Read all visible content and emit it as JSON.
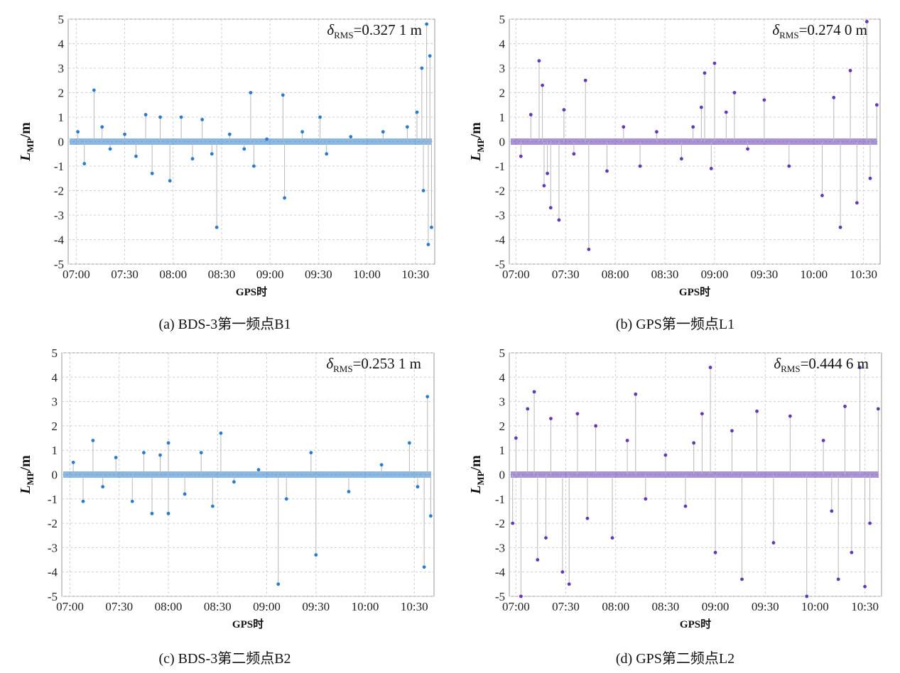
{
  "chart_data": [
    {
      "type": "scatter",
      "panel_label": "(a) BDS-3第一频点B1",
      "annotation": {
        "symbol": "δ",
        "sub": "RMS",
        "value": "=0.327 1 m"
      },
      "xlabel": "GPS时",
      "ylabel": {
        "main": "L",
        "sub": "MP",
        "unit": "/m"
      },
      "x_ticks": [
        "07:00",
        "07:30",
        "08:00",
        "08:30",
        "09:00",
        "09:30",
        "10:00",
        "10:30"
      ],
      "x_range": [
        "06:55",
        "10:42"
      ],
      "y_ticks": [
        5,
        4,
        3,
        2,
        1,
        0,
        -1,
        -2,
        -3,
        -4,
        -5
      ],
      "ylim": [
        -5,
        5
      ],
      "grid": true,
      "color": "#2b7bcc",
      "series": [
        {
          "points": [
            {
              "x": "07:01",
              "y": 0.4
            },
            {
              "x": "07:05",
              "y": -0.9
            },
            {
              "x": "07:11",
              "y": 2.1
            },
            {
              "x": "07:16",
              "y": 0.6
            },
            {
              "x": "07:21",
              "y": -0.3
            },
            {
              "x": "07:30",
              "y": 0.3
            },
            {
              "x": "07:37",
              "y": -0.6
            },
            {
              "x": "07:43",
              "y": 1.1
            },
            {
              "x": "07:47",
              "y": -1.3
            },
            {
              "x": "07:52",
              "y": 1.0
            },
            {
              "x": "07:58",
              "y": -1.6
            },
            {
              "x": "08:05",
              "y": 1.0
            },
            {
              "x": "08:12",
              "y": -0.7
            },
            {
              "x": "08:18",
              "y": 0.9
            },
            {
              "x": "08:24",
              "y": -0.5
            },
            {
              "x": "08:27",
              "y": -3.5
            },
            {
              "x": "08:35",
              "y": 0.3
            },
            {
              "x": "08:44",
              "y": -0.3
            },
            {
              "x": "08:48",
              "y": 2.0
            },
            {
              "x": "08:50",
              "y": -1.0
            },
            {
              "x": "08:58",
              "y": 0.1
            },
            {
              "x": "09:08",
              "y": 1.9
            },
            {
              "x": "09:09",
              "y": -2.3
            },
            {
              "x": "09:20",
              "y": 0.4
            },
            {
              "x": "09:31",
              "y": 1.0
            },
            {
              "x": "09:35",
              "y": -0.5
            },
            {
              "x": "09:50",
              "y": 0.2
            },
            {
              "x": "10:10",
              "y": 0.4
            },
            {
              "x": "10:25",
              "y": 0.6
            },
            {
              "x": "10:31",
              "y": 1.2
            },
            {
              "x": "10:34",
              "y": 3.0
            },
            {
              "x": "10:35",
              "y": -2.0
            },
            {
              "x": "10:37",
              "y": 4.8
            },
            {
              "x": "10:38",
              "y": -4.2
            },
            {
              "x": "10:39",
              "y": 3.5
            },
            {
              "x": "10:40",
              "y": -3.5
            }
          ]
        }
      ]
    },
    {
      "type": "scatter",
      "panel_label": "(b) GPS第一频点L1",
      "annotation": {
        "symbol": "δ",
        "sub": "RMS",
        "value": "=0.274 0 m"
      },
      "xlabel": "GPS时",
      "ylabel": {
        "main": "L",
        "sub": "MP",
        "unit": "/m"
      },
      "x_ticks": [
        "07:00",
        "07:30",
        "08:00",
        "08:30",
        "09:00",
        "09:30",
        "10:00",
        "10:30"
      ],
      "x_range": [
        "06:56",
        "10:40"
      ],
      "y_ticks": [
        5,
        4,
        3,
        2,
        1,
        0,
        -1,
        -2,
        -3,
        -4,
        -5
      ],
      "ylim": [
        -5,
        5
      ],
      "grid": true,
      "color": "#6238b4",
      "series": [
        {
          "points": [
            {
              "x": "07:03",
              "y": -0.6
            },
            {
              "x": "07:09",
              "y": 1.1
            },
            {
              "x": "07:14",
              "y": 3.3
            },
            {
              "x": "07:16",
              "y": 2.3
            },
            {
              "x": "07:17",
              "y": -1.8
            },
            {
              "x": "07:19",
              "y": -1.3
            },
            {
              "x": "07:21",
              "y": -2.7
            },
            {
              "x": "07:26",
              "y": -3.2
            },
            {
              "x": "07:29",
              "y": 1.3
            },
            {
              "x": "07:35",
              "y": -0.5
            },
            {
              "x": "07:42",
              "y": 2.5
            },
            {
              "x": "07:44",
              "y": -4.4
            },
            {
              "x": "07:55",
              "y": -1.2
            },
            {
              "x": "08:05",
              "y": 0.6
            },
            {
              "x": "08:15",
              "y": -1.0
            },
            {
              "x": "08:25",
              "y": 0.4
            },
            {
              "x": "08:40",
              "y": -0.7
            },
            {
              "x": "08:47",
              "y": 0.6
            },
            {
              "x": "08:52",
              "y": 1.4
            },
            {
              "x": "08:54",
              "y": 2.8
            },
            {
              "x": "08:58",
              "y": -1.1
            },
            {
              "x": "09:00",
              "y": 3.2
            },
            {
              "x": "09:07",
              "y": 1.2
            },
            {
              "x": "09:12",
              "y": 2.0
            },
            {
              "x": "09:20",
              "y": -0.3
            },
            {
              "x": "09:30",
              "y": 1.7
            },
            {
              "x": "09:45",
              "y": -1.0
            },
            {
              "x": "10:05",
              "y": -2.2
            },
            {
              "x": "10:12",
              "y": 1.8
            },
            {
              "x": "10:16",
              "y": -3.5
            },
            {
              "x": "10:22",
              "y": 2.9
            },
            {
              "x": "10:26",
              "y": -2.5
            },
            {
              "x": "10:32",
              "y": 4.9
            },
            {
              "x": "10:34",
              "y": -1.5
            },
            {
              "x": "10:38",
              "y": 1.5
            }
          ]
        }
      ]
    },
    {
      "type": "scatter",
      "panel_label": "(c) BDS-3第二频点B2",
      "annotation": {
        "symbol": "δ",
        "sub": "RMS",
        "value": "=0.253 1 m"
      },
      "xlabel": "GPS时",
      "ylabel": {
        "main": "L",
        "sub": "MP",
        "unit": "/m"
      },
      "x_ticks": [
        "07:00",
        "07:30",
        "08:00",
        "08:30",
        "09:00",
        "09:30",
        "10:00",
        "10:30"
      ],
      "x_range": [
        "06:55",
        "10:42"
      ],
      "y_ticks": [
        5,
        4,
        3,
        2,
        1,
        0,
        -1,
        -2,
        -3,
        -4,
        -5
      ],
      "ylim": [
        -5,
        5
      ],
      "grid": true,
      "color": "#2b7bcc",
      "series": [
        {
          "points": [
            {
              "x": "07:02",
              "y": 0.5
            },
            {
              "x": "07:08",
              "y": -1.1
            },
            {
              "x": "07:14",
              "y": 1.4
            },
            {
              "x": "07:20",
              "y": -0.5
            },
            {
              "x": "07:28",
              "y": 0.7
            },
            {
              "x": "07:38",
              "y": -1.1
            },
            {
              "x": "07:45",
              "y": 0.9
            },
            {
              "x": "07:50",
              "y": -1.6
            },
            {
              "x": "07:55",
              "y": 0.8
            },
            {
              "x": "08:00",
              "y": -1.6
            },
            {
              "x": "08:00",
              "y": 1.3
            },
            {
              "x": "08:10",
              "y": -0.8
            },
            {
              "x": "08:20",
              "y": 0.9
            },
            {
              "x": "08:27",
              "y": -1.3
            },
            {
              "x": "08:32",
              "y": 1.7
            },
            {
              "x": "08:40",
              "y": -0.3
            },
            {
              "x": "08:55",
              "y": 0.2
            },
            {
              "x": "09:07",
              "y": -4.5
            },
            {
              "x": "09:12",
              "y": -1.0
            },
            {
              "x": "09:27",
              "y": 0.9
            },
            {
              "x": "09:30",
              "y": -3.3
            },
            {
              "x": "09:50",
              "y": -0.7
            },
            {
              "x": "10:10",
              "y": 0.4
            },
            {
              "x": "10:27",
              "y": 1.3
            },
            {
              "x": "10:32",
              "y": -0.5
            },
            {
              "x": "10:36",
              "y": -3.8
            },
            {
              "x": "10:38",
              "y": 3.2
            },
            {
              "x": "10:40",
              "y": -1.7
            }
          ]
        }
      ]
    },
    {
      "type": "scatter",
      "panel_label": "(d) GPS第二频点L2",
      "annotation": {
        "symbol": "δ",
        "sub": "RMS",
        "value": "=0.444 6 m"
      },
      "xlabel": "GPS时",
      "ylabel": {
        "main": "L",
        "sub": "MP",
        "unit": "/m"
      },
      "x_ticks": [
        "07:00",
        "07:30",
        "08:00",
        "08:30",
        "09:00",
        "09:30",
        "10:00",
        "10:30"
      ],
      "x_range": [
        "06:56",
        "10:40"
      ],
      "y_ticks": [
        5,
        4,
        3,
        2,
        1,
        0,
        -1,
        -2,
        -3,
        -4,
        -5
      ],
      "ylim": [
        -5,
        5
      ],
      "grid": true,
      "color": "#6238b4",
      "series": [
        {
          "points": [
            {
              "x": "06:58",
              "y": -2.0
            },
            {
              "x": "07:00",
              "y": 1.5
            },
            {
              "x": "07:03",
              "y": -5.0
            },
            {
              "x": "07:07",
              "y": 2.7
            },
            {
              "x": "07:11",
              "y": 3.4
            },
            {
              "x": "07:13",
              "y": -3.5
            },
            {
              "x": "07:18",
              "y": -2.6
            },
            {
              "x": "07:21",
              "y": 2.3
            },
            {
              "x": "07:28",
              "y": -4.0
            },
            {
              "x": "07:32",
              "y": -4.5
            },
            {
              "x": "07:37",
              "y": 2.5
            },
            {
              "x": "07:43",
              "y": -1.8
            },
            {
              "x": "07:48",
              "y": 2.0
            },
            {
              "x": "07:58",
              "y": -2.6
            },
            {
              "x": "08:07",
              "y": 1.4
            },
            {
              "x": "08:12",
              "y": 3.3
            },
            {
              "x": "08:18",
              "y": -1.0
            },
            {
              "x": "08:30",
              "y": 0.8
            },
            {
              "x": "08:42",
              "y": -1.3
            },
            {
              "x": "08:47",
              "y": 1.3
            },
            {
              "x": "08:52",
              "y": 2.5
            },
            {
              "x": "08:57",
              "y": 4.4
            },
            {
              "x": "09:00",
              "y": -3.2
            },
            {
              "x": "09:10",
              "y": 1.8
            },
            {
              "x": "09:16",
              "y": -4.3
            },
            {
              "x": "09:25",
              "y": 2.6
            },
            {
              "x": "09:35",
              "y": -2.8
            },
            {
              "x": "09:45",
              "y": 2.4
            },
            {
              "x": "09:55",
              "y": -5.0
            },
            {
              "x": "10:05",
              "y": 1.4
            },
            {
              "x": "10:10",
              "y": -1.5
            },
            {
              "x": "10:14",
              "y": -4.3
            },
            {
              "x": "10:18",
              "y": 2.8
            },
            {
              "x": "10:22",
              "y": -3.2
            },
            {
              "x": "10:27",
              "y": 4.4
            },
            {
              "x": "10:30",
              "y": -4.6
            },
            {
              "x": "10:33",
              "y": -2.0
            },
            {
              "x": "10:38",
              "y": 2.7
            }
          ]
        }
      ]
    }
  ]
}
